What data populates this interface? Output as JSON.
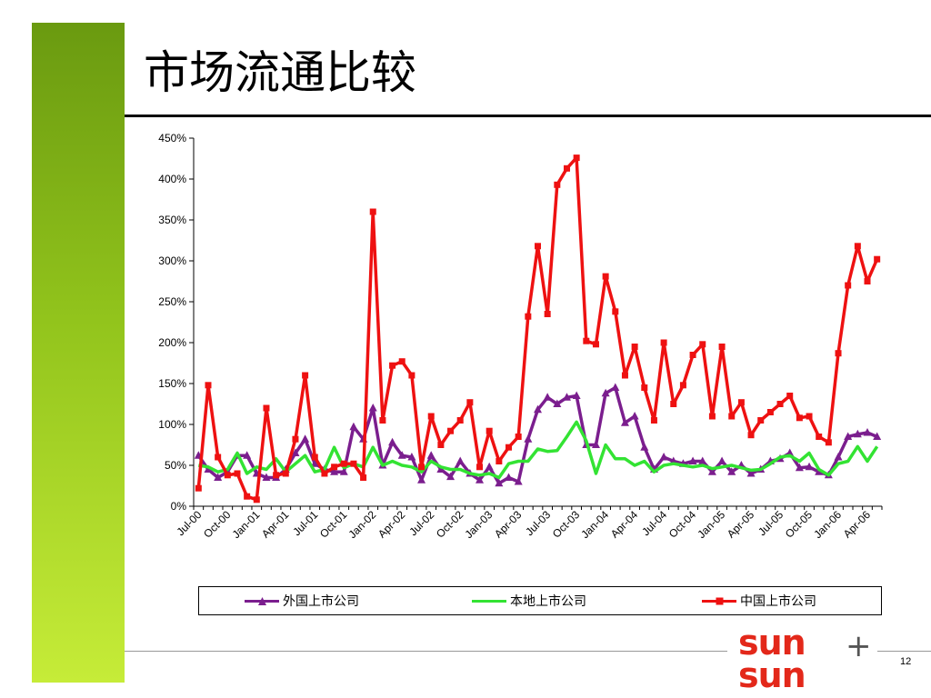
{
  "slide": {
    "title": "市场流通比较",
    "page_number": "12",
    "logo_text_top": "sun",
    "logo_text_bottom": "sun",
    "logo_plus": "+"
  },
  "colors": {
    "accent_green_top": "#6a9a10",
    "accent_green_bottom": "#c6ec38",
    "series_foreign": "#7b1e8e",
    "series_local": "#33e333",
    "series_china": "#ee1111",
    "logo": "#e3281a"
  },
  "chart_data": {
    "type": "line",
    "yticks": [
      "0%",
      "50%",
      "100%",
      "150%",
      "200%",
      "250%",
      "300%",
      "350%",
      "400%",
      "450%"
    ],
    "ylim": [
      0,
      450
    ],
    "x_tick_labels": [
      "Jul-00",
      "Oct-00",
      "Jan-01",
      "Apr-01",
      "Jul-01",
      "Oct-01",
      "Jan-02",
      "Apr-02",
      "Jul-02",
      "Oct-02",
      "Jan-03",
      "Apr-03",
      "Jul-03",
      "Oct-03",
      "Jan-04",
      "Apr-04",
      "Jul-04",
      "Oct-04",
      "Jan-05",
      "Apr-05",
      "Jul-05",
      "Oct-05",
      "Jan-06",
      "Apr-06"
    ],
    "legend_position": "bottom",
    "series": [
      {
        "name": "外国上市公司",
        "marker": "triangle",
        "values": [
          62,
          45,
          35,
          42,
          62,
          62,
          40,
          35,
          35,
          45,
          65,
          82,
          52,
          45,
          42,
          42,
          97,
          82,
          120,
          50,
          78,
          62,
          60,
          32,
          62,
          45,
          36,
          55,
          40,
          32,
          48,
          28,
          35,
          30,
          82,
          118,
          133,
          125,
          133,
          135,
          75,
          75,
          138,
          145,
          102,
          110,
          72,
          45,
          60,
          55,
          52,
          55,
          55,
          42,
          55,
          42,
          50,
          40,
          45,
          55,
          58,
          65,
          47,
          48,
          42,
          38,
          60,
          85,
          88,
          90,
          85
        ]
      },
      {
        "name": "本地上市公司",
        "marker": "none",
        "values": [
          50,
          48,
          42,
          45,
          65,
          40,
          48,
          45,
          58,
          42,
          52,
          62,
          42,
          45,
          72,
          47,
          52,
          48,
          72,
          50,
          55,
          50,
          48,
          42,
          55,
          48,
          45,
          45,
          40,
          38,
          40,
          35,
          52,
          55,
          55,
          70,
          67,
          68,
          85,
          103,
          80,
          40,
          75,
          58,
          58,
          50,
          55,
          42,
          50,
          52,
          50,
          48,
          50,
          46,
          48,
          50,
          47,
          44,
          45,
          52,
          60,
          62,
          55,
          65,
          45,
          38,
          52,
          55,
          73,
          55,
          73
        ]
      },
      {
        "name": "中国上市公司",
        "marker": "square",
        "values": [
          22,
          148,
          60,
          38,
          40,
          12,
          8,
          120,
          38,
          40,
          82,
          160,
          60,
          40,
          48,
          52,
          52,
          35,
          360,
          105,
          172,
          177,
          160,
          48,
          110,
          75,
          92,
          105,
          127,
          48,
          92,
          55,
          72,
          85,
          232,
          318,
          235,
          393,
          413,
          426,
          202,
          198,
          281,
          238,
          160,
          195,
          145,
          105,
          200,
          125,
          148,
          185,
          198,
          110,
          195,
          110,
          127,
          87,
          105,
          115,
          125,
          135,
          108,
          110,
          85,
          78,
          187,
          270,
          318,
          275,
          302
        ]
      }
    ]
  }
}
